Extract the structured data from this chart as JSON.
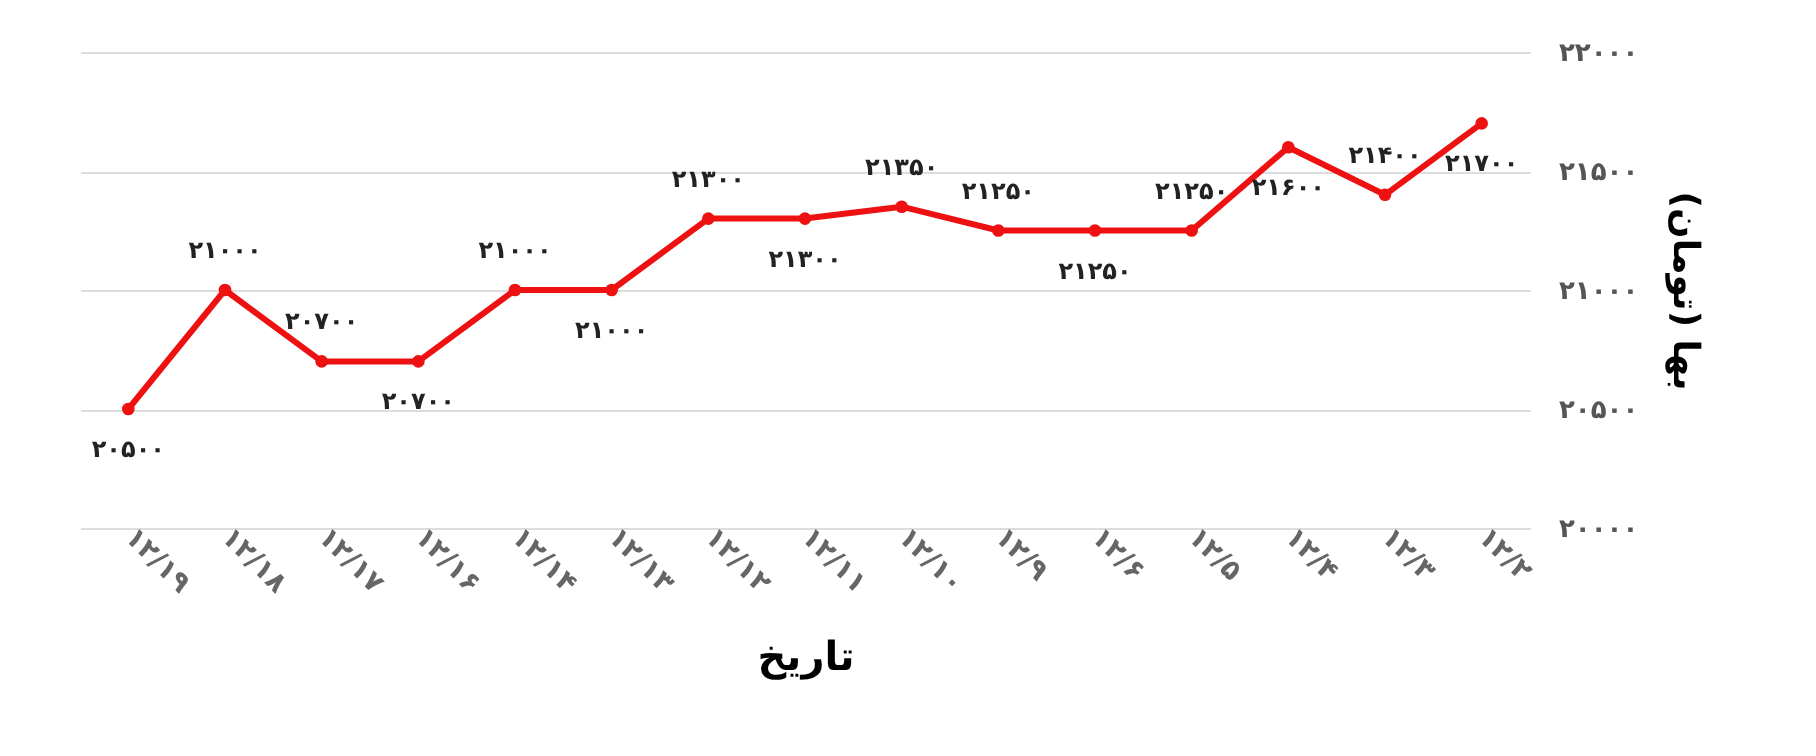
{
  "chart_data": {
    "type": "line",
    "xlabel": "تاریخ",
    "ylabel": "بها (تومان)",
    "categories": [
      "۱۲/۱۹",
      "۱۲/۱۸",
      "۱۲/۱۷",
      "۱۲/۱۶",
      "۱۲/۱۴",
      "۱۲/۱۳",
      "۱۲/۱۲",
      "۱۲/۱۱",
      "۱۲/۱۰",
      "۱۲/۹",
      "۱۲/۶",
      "۱۲/۵",
      "۱۲/۴",
      "۱۲/۳",
      "۱۲/۲"
    ],
    "series": [
      {
        "color": "#ee1111",
        "values": [
          20500,
          21000,
          20700,
          20700,
          21000,
          21000,
          21300,
          21300,
          21350,
          21250,
          21250,
          21250,
          21600,
          21400,
          21700
        ],
        "value_labels": [
          "۲۰۵۰۰",
          "۲۱۰۰۰",
          "۲۰۷۰۰",
          "۲۰۷۰۰",
          "۲۱۰۰۰",
          "۲۱۰۰۰",
          "۲۱۳۰۰",
          "۲۱۳۰۰",
          "۲۱۳۵۰",
          "۲۱۲۵۰",
          "۲۱۲۵۰",
          "۲۱۲۵۰",
          "۲۱۶۰۰",
          "۲۱۴۰۰",
          "۲۱۷۰۰"
        ]
      }
    ],
    "ylim": [
      20000,
      22000
    ],
    "yticks": [
      {
        "value": 20000,
        "label": "۲۰۰۰۰"
      },
      {
        "value": 20500,
        "label": "۲۰۵۰۰"
      },
      {
        "value": 21000,
        "label": "۲۱۰۰۰"
      },
      {
        "value": 21500,
        "label": "۲۱۵۰۰"
      },
      {
        "value": 22000,
        "label": "۲۲۰۰۰"
      }
    ],
    "grid": "y",
    "marker": "circle",
    "line_style": "solid"
  }
}
